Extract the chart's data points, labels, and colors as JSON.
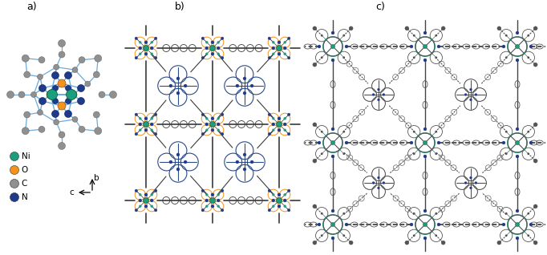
{
  "bg_color": "#ffffff",
  "ni_color": "#1a9e7e",
  "o_color": "#f5921e",
  "c_color": "#909090",
  "n_color": "#1e3a8a",
  "bond_lb": "#6aabdc",
  "bond_dk": "#3a3a3a",
  "legend": [
    {
      "label": "Ni",
      "color": "#1a9e7e"
    },
    {
      "label": "O",
      "color": "#f5921e"
    },
    {
      "label": "C",
      "color": "#909090"
    },
    {
      "label": "N",
      "color": "#1e3a8a"
    }
  ]
}
